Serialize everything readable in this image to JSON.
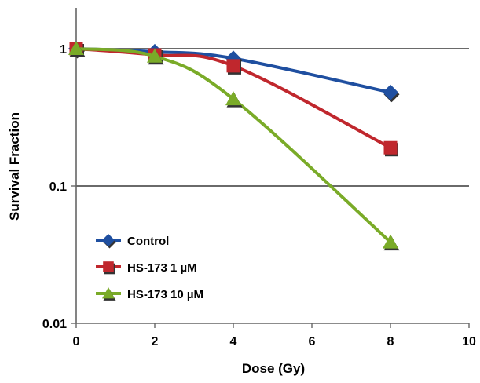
{
  "chart_data": {
    "type": "line",
    "title": "",
    "xlabel": "Dose (Gy)",
    "ylabel": "Survival Fraction",
    "xlim": [
      0,
      10
    ],
    "ylim": [
      0.01,
      1.5
    ],
    "y_scale": "log",
    "x_ticks": [
      0,
      2,
      4,
      6,
      8,
      10
    ],
    "x_tick_labels": [
      "0",
      "2",
      "4",
      "6",
      "8",
      "10"
    ],
    "y_ticks": [
      0.01,
      0.1,
      1
    ],
    "y_tick_labels": [
      "0.01",
      "0.1",
      "1"
    ],
    "gridlines": "horizontal at 0.1 and 1",
    "legend_position": "bottom-left",
    "series": [
      {
        "name": "Control",
        "color": "#1f4fa0",
        "marker": "diamond",
        "x": [
          0,
          2,
          4,
          8
        ],
        "y": [
          1.0,
          0.95,
          0.85,
          0.48
        ]
      },
      {
        "name": "HS-173 1 µM",
        "color": "#c0272d",
        "marker": "square",
        "x": [
          0,
          2,
          4,
          8
        ],
        "y": [
          1.0,
          0.9,
          0.75,
          0.19
        ]
      },
      {
        "name": "HS-173 10 µM",
        "color": "#7aab28",
        "marker": "triangle",
        "x": [
          0,
          2,
          4,
          8
        ],
        "y": [
          1.0,
          0.88,
          0.43,
          0.039
        ]
      }
    ]
  }
}
